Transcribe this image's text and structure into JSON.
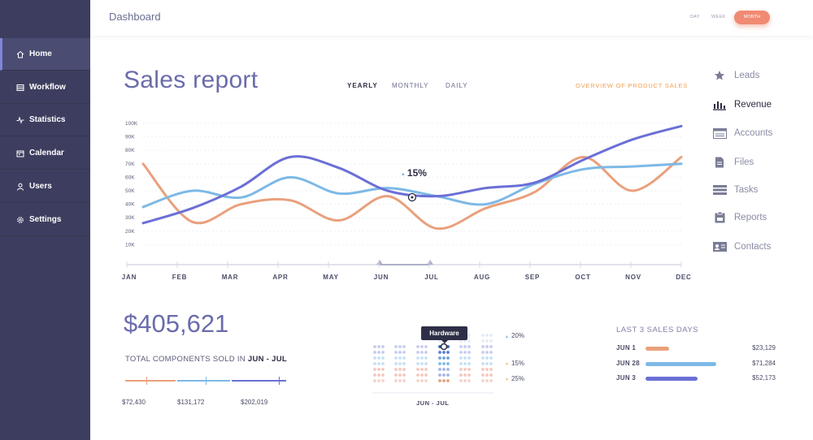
{
  "header": {
    "title": "Dashboard",
    "ranges": [
      "DAY",
      "WEEK",
      "MONTH"
    ],
    "active_range": "MONTH"
  },
  "sidebar": {
    "items": [
      {
        "label": "Home",
        "icon": "home-icon",
        "active": true
      },
      {
        "label": "Workflow",
        "icon": "workflow-icon"
      },
      {
        "label": "Statistics",
        "icon": "statistics-icon"
      },
      {
        "label": "Calendar",
        "icon": "calendar-icon"
      },
      {
        "label": "Users",
        "icon": "users-icon"
      },
      {
        "label": "Settings",
        "icon": "settings-icon"
      }
    ]
  },
  "report": {
    "title": "Sales report",
    "tabs": [
      "YEARLY",
      "MONTHLY",
      "DAILY"
    ],
    "active_tab": "YEARLY",
    "overview_link": "OVERVIEW OF PRODUCT SALES"
  },
  "right_menu": {
    "items": [
      {
        "label": "Leads",
        "icon": "star-icon"
      },
      {
        "label": "Revenue",
        "icon": "bar-chart-icon",
        "active": true
      },
      {
        "label": "Accounts",
        "icon": "accounts-icon"
      },
      {
        "label": "Files",
        "icon": "file-icon"
      },
      {
        "label": "Tasks",
        "icon": "tasks-icon"
      },
      {
        "label": "Reports",
        "icon": "clipboard-icon"
      },
      {
        "label": "Contacts",
        "icon": "contact-card-icon"
      }
    ]
  },
  "chart_data": {
    "type": "line",
    "x": [
      "JAN",
      "FEB",
      "MAR",
      "APR",
      "MAY",
      "JUN",
      "JUL",
      "AUG",
      "SEP",
      "OCT",
      "NOV",
      "DEC"
    ],
    "yticks": [
      "10K",
      "20K",
      "30K",
      "40K",
      "50K",
      "60K",
      "70K",
      "80K",
      "90K",
      "100K"
    ],
    "ylim": [
      0,
      100
    ],
    "grid": true,
    "series": [
      {
        "color": "#6b6fd6",
        "values": [
          26,
          37,
          53,
          75,
          67,
          50,
          46,
          52,
          56,
          73,
          88,
          98
        ]
      },
      {
        "color": "#7db9e6",
        "values": [
          38,
          50,
          45,
          60,
          48,
          52,
          46,
          40,
          55,
          66,
          68,
          70
        ]
      },
      {
        "color": "#e9a07c",
        "values": [
          70,
          27,
          40,
          43,
          28,
          46,
          22,
          37,
          49,
          75,
          50,
          75
        ]
      }
    ],
    "annotation": {
      "label": "15%",
      "x": "JUN",
      "y": 50
    }
  },
  "summary": {
    "amount": "$405,621",
    "label": "TOTAL COMPONENTS SOLD IN",
    "period": "JUN - JUL",
    "segments": [
      {
        "value": "$72,430",
        "color": "#e9a07c"
      },
      {
        "value": "$131,172",
        "color": "#7db9e6"
      },
      {
        "value": "$202,019",
        "color": "#6b6fd6"
      }
    ]
  },
  "dot_matrix": {
    "tooltip": "Hardware",
    "percents": [
      {
        "label": "20%",
        "color": "#7db9e6"
      },
      {
        "label": "15%",
        "color": "#e9c07c"
      },
      {
        "label": "25%",
        "color": "#e9c07c"
      }
    ],
    "range": "JUN - JUL"
  },
  "last_sales": {
    "title": "LAST 3 SALES DAYS",
    "rows": [
      {
        "date": "JUN 1",
        "amount": "$23,129",
        "color": "#e9a07c",
        "fraction": 0.33
      },
      {
        "date": "JUN 28",
        "amount": "$71,284",
        "color": "#7db9e6",
        "fraction": 1.0
      },
      {
        "date": "JUN 3",
        "amount": "$52,173",
        "color": "#6b6fd6",
        "fraction": 0.73
      }
    ]
  }
}
